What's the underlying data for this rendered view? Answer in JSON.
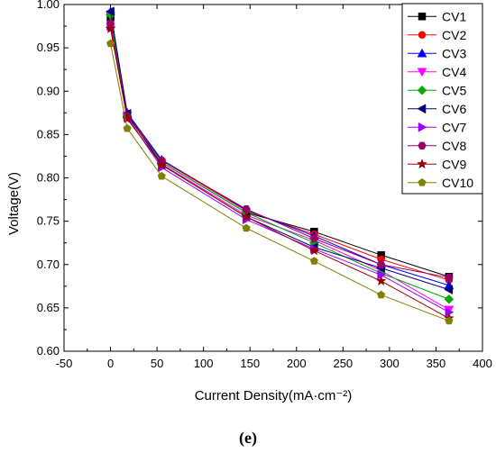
{
  "chart_data": {
    "type": "line",
    "xlabel": "Current Density(mA·cm⁻²)",
    "ylabel": "Voltage(V)",
    "panel_label": "(e)",
    "xlim": [
      -50,
      400
    ],
    "ylim": [
      0.6,
      1.0
    ],
    "x_ticks": [
      -50,
      0,
      50,
      100,
      150,
      200,
      250,
      300,
      350,
      400
    ],
    "y_ticks": [
      0.6,
      0.65,
      0.7,
      0.75,
      0.8,
      0.85,
      0.9,
      0.95,
      1.0
    ],
    "x_tick_labels": [
      "-50",
      "0",
      "50",
      "100",
      "150",
      "200",
      "250",
      "300",
      "350",
      "400"
    ],
    "y_tick_labels": [
      "0.60",
      "0.65",
      "0.70",
      "0.75",
      "0.80",
      "0.85",
      "0.90",
      "0.95",
      "1.00"
    ],
    "grid": false,
    "legend_position": "top-right",
    "x": [
      0,
      18,
      55,
      146,
      219,
      291,
      364
    ],
    "series": [
      {
        "name": "CV1",
        "color": "#000000",
        "marker": "square",
        "values": [
          0.985,
          0.872,
          0.818,
          0.76,
          0.738,
          0.711,
          0.686
        ]
      },
      {
        "name": "CV2",
        "color": "#ff0000",
        "marker": "circle",
        "values": [
          0.99,
          0.873,
          0.82,
          0.762,
          0.735,
          0.706,
          0.682
        ]
      },
      {
        "name": "CV3",
        "color": "#0000ff",
        "marker": "triangle-up",
        "values": [
          0.992,
          0.875,
          0.821,
          0.763,
          0.733,
          0.7,
          0.676
        ]
      },
      {
        "name": "CV4",
        "color": "#ff00ff",
        "marker": "triangle-down",
        "values": [
          0.987,
          0.872,
          0.816,
          0.757,
          0.728,
          0.693,
          0.648
        ]
      },
      {
        "name": "CV5",
        "color": "#00aa00",
        "marker": "diamond",
        "values": [
          0.988,
          0.871,
          0.818,
          0.76,
          0.725,
          0.69,
          0.66
        ]
      },
      {
        "name": "CV6",
        "color": "#000080",
        "marker": "triangle-left",
        "values": [
          0.992,
          0.874,
          0.815,
          0.755,
          0.72,
          0.696,
          0.671
        ]
      },
      {
        "name": "CV7",
        "color": "#9900ff",
        "marker": "triangle-right",
        "values": [
          0.975,
          0.87,
          0.812,
          0.752,
          0.718,
          0.688,
          0.645
        ]
      },
      {
        "name": "CV8",
        "color": "#990066",
        "marker": "hexagon",
        "values": [
          0.978,
          0.871,
          0.82,
          0.764,
          0.73,
          0.7,
          0.685
        ]
      },
      {
        "name": "CV9",
        "color": "#990000",
        "marker": "star",
        "values": [
          0.972,
          0.868,
          0.815,
          0.755,
          0.716,
          0.681,
          0.638
        ]
      },
      {
        "name": "CV10",
        "color": "#808000",
        "marker": "pentagon",
        "values": [
          0.955,
          0.857,
          0.802,
          0.742,
          0.704,
          0.665,
          0.635
        ]
      }
    ]
  }
}
